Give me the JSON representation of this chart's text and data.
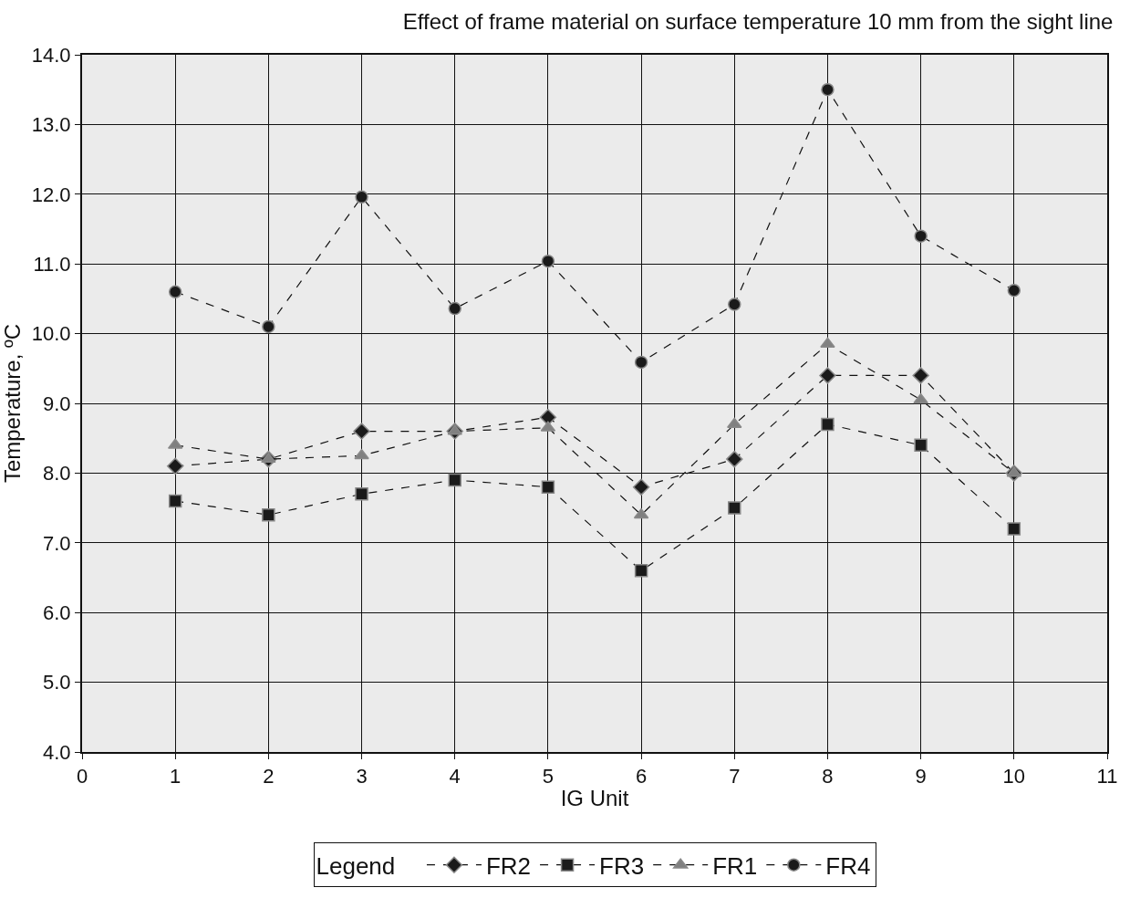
{
  "chart_data": {
    "type": "line",
    "title": "Effect of frame material on surface temperature 10 mm from the sight line",
    "xlabel": "IG Unit",
    "ylabel": "Temperature, ºC",
    "legend_title": "Legend",
    "x": [
      1,
      2,
      3,
      4,
      5,
      6,
      7,
      8,
      9,
      10
    ],
    "series": [
      {
        "name": "FR2",
        "color": "#1a1a1a",
        "marker": "diamond",
        "values": [
          8.1,
          8.2,
          8.6,
          8.6,
          8.8,
          7.8,
          8.2,
          9.4,
          9.4,
          8.0
        ]
      },
      {
        "name": "FR3",
        "color": "#1a1a1a",
        "marker": "square",
        "values": [
          7.6,
          7.4,
          7.7,
          7.9,
          7.8,
          6.6,
          7.5,
          8.7,
          8.4,
          7.2
        ]
      },
      {
        "name": "FR1",
        "color": "#808080",
        "marker": "triangle",
        "values": [
          8.4,
          8.2,
          8.25,
          8.6,
          8.65,
          7.4,
          8.7,
          9.85,
          9.05,
          8.0
        ]
      },
      {
        "name": "FR4",
        "color": "#1a1a1a",
        "marker": "circle",
        "values": [
          10.6,
          10.1,
          11.96,
          10.36,
          11.04,
          9.59,
          10.42,
          13.5,
          11.4,
          10.62
        ]
      }
    ],
    "xlim": [
      0,
      11
    ],
    "xticks": [
      0,
      1,
      2,
      3,
      4,
      5,
      6,
      7,
      8,
      9,
      10,
      11
    ],
    "ylim": [
      4,
      14
    ],
    "yticks": [
      {
        "value": 4,
        "label": "4.0"
      },
      {
        "value": 5,
        "label": "5.0"
      },
      {
        "value": 6,
        "label": "6.0"
      },
      {
        "value": 7,
        "label": "7.0"
      },
      {
        "value": 8,
        "label": "8.0"
      },
      {
        "value": 9,
        "label": "9.0"
      },
      {
        "value": 10,
        "label": "10.0"
      },
      {
        "value": 11,
        "label": "11.0"
      },
      {
        "value": 12,
        "label": "12.0"
      },
      {
        "value": 13,
        "label": "13.0"
      },
      {
        "value": 14,
        "label": "14.0"
      }
    ],
    "grid": true,
    "legend": "bottom",
    "line_style": "dashed"
  }
}
